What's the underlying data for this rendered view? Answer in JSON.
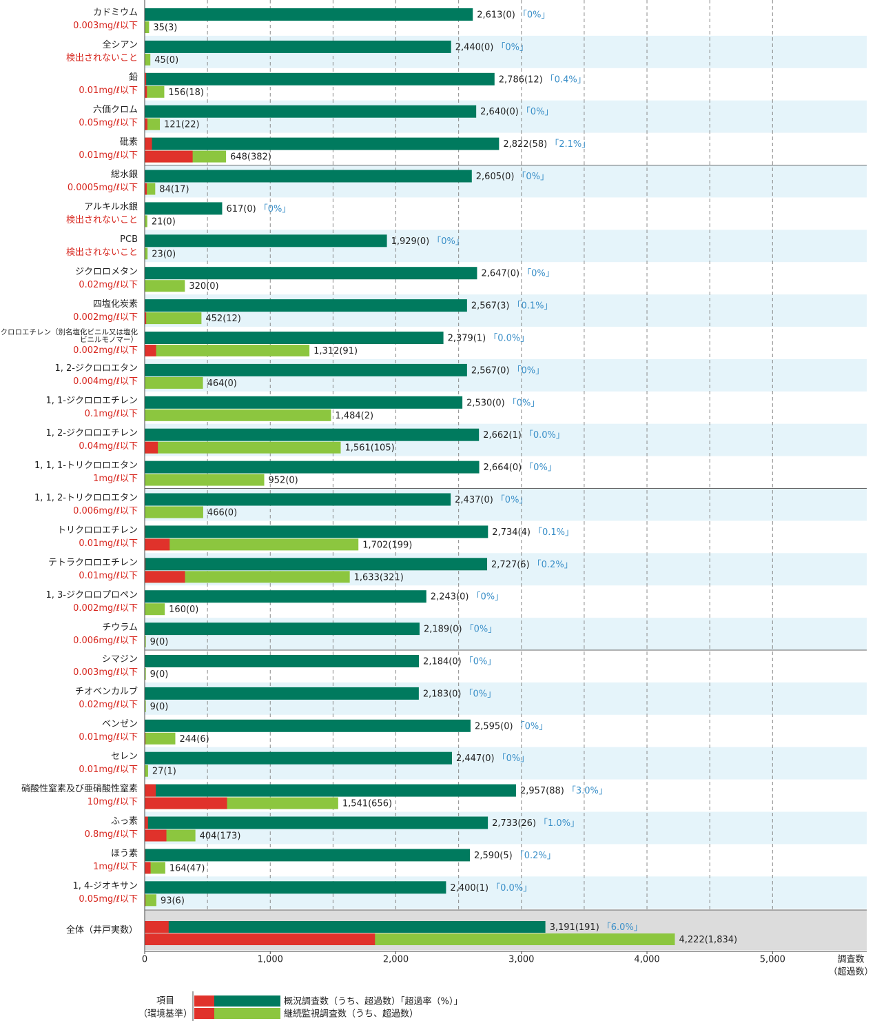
{
  "chart_data": {
    "type": "bar",
    "orientation": "horizontal",
    "categories": [
      "カドミウム",
      "全シアン",
      "鉛",
      "六価クロム",
      "砒素",
      "総水銀",
      "アルキル水銀",
      "PCB",
      "ジクロロメタン",
      "四塩化炭素",
      "クロロエチレン（別名塩化ビニル又は塩化ビニルモノマー）",
      "1, 2-ジクロロエタン",
      "1, 1-ジクロロエチレン",
      "1, 2-ジクロロエチレン",
      "1, 1, 1-トリクロロエタン",
      "1, 1, 2-トリクロロエタン",
      "トリクロロエチレン",
      "テトラクロロエチレン",
      "1, 3-ジクロロプロペン",
      "チウラム",
      "シマジン",
      "チオベンカルブ",
      "ベンゼン",
      "セレン",
      "硝酸性窒素及び亜硝酸性窒素",
      "ふっ素",
      "ほう素",
      "1, 4-ジオキサン",
      "全体（井戸実数）"
    ],
    "standards": [
      "0.003mg/ℓ以下",
      "検出されないこと",
      "0.01mg/ℓ以下",
      "0.05mg/ℓ以下",
      "0.01mg/ℓ以下",
      "0.0005mg/ℓ以下",
      "検出されないこと",
      "検出されないこと",
      "0.02mg/ℓ以下",
      "0.002mg/ℓ以下",
      "0.002mg/ℓ以下",
      "0.004mg/ℓ以下",
      "0.1mg/ℓ以下",
      "0.04mg/ℓ以下",
      "1mg/ℓ以下",
      "0.006mg/ℓ以下",
      "0.01mg/ℓ以下",
      "0.01mg/ℓ以下",
      "0.002mg/ℓ以下",
      "0.006mg/ℓ以下",
      "0.003mg/ℓ以下",
      "0.02mg/ℓ以下",
      "0.01mg/ℓ以下",
      "0.01mg/ℓ以下",
      "10mg/ℓ以下",
      "0.8mg/ℓ以下",
      "1mg/ℓ以下",
      "0.05mg/ℓ以下",
      null
    ],
    "series": [
      {
        "name": "概況調査数（うち、超過数）「超過率（%）」",
        "color": "#007a5e",
        "exceed_color": "#e0322b",
        "rate_color": "#3a8fc8",
        "values": [
          2613,
          2440,
          2786,
          2640,
          2822,
          2605,
          617,
          1929,
          2647,
          2567,
          2379,
          2567,
          2530,
          2662,
          2664,
          2437,
          2734,
          2727,
          2243,
          2189,
          2184,
          2183,
          2595,
          2447,
          2957,
          2733,
          2590,
          2400,
          3191
        ],
        "exceed": [
          0,
          0,
          12,
          0,
          58,
          0,
          0,
          0,
          0,
          3,
          1,
          0,
          0,
          1,
          0,
          0,
          4,
          6,
          0,
          0,
          0,
          0,
          0,
          0,
          88,
          26,
          5,
          1,
          191
        ],
        "value_labels": [
          "2,613(0)",
          "2,440(0)",
          "2,786(12)",
          "2,640(0)",
          "2,822(58)",
          "2,605(0)",
          "617(0)",
          "1,929(0)",
          "2,647(0)",
          "2,567(3)",
          "2,379(1)",
          "2,567(0)",
          "2,530(0)",
          "2,662(1)",
          "2,664(0)",
          "2,437(0)",
          "2,734(4)",
          "2,727(6)",
          "2,243(0)",
          "2,189(0)",
          "2,184(0)",
          "2,183(0)",
          "2,595(0)",
          "2,447(0)",
          "2,957(88)",
          "2,733(26)",
          "2,590(5)",
          "2,400(1)",
          "3,191(191)"
        ],
        "rates": [
          0,
          0,
          0.4,
          0,
          2.1,
          0,
          0,
          0,
          0,
          0.1,
          0.0,
          0,
          0,
          0.0,
          0,
          0,
          0.1,
          0.2,
          0,
          0,
          0,
          0,
          0,
          0,
          3.0,
          1.0,
          0.2,
          0.0,
          6.0
        ],
        "rate_labels": [
          "「0%」",
          "「0%」",
          "「0.4%」",
          "「0%」",
          "「2.1%」",
          "「0%」",
          "「0%」",
          "「0%」",
          "「0%」",
          "「0.1%」",
          "「0.0%」",
          "「0%」",
          "「0%」",
          "「0.0%」",
          "「0%」",
          "「0%」",
          "「0.1%」",
          "「0.2%」",
          "「0%」",
          "「0%」",
          "「0%」",
          "「0%」",
          "「0%」",
          "「0%」",
          "「3.0%」",
          "「1.0%」",
          "「0.2%」",
          "「0.0%」",
          "「6.0%」"
        ]
      },
      {
        "name": "継続監視調査数（うち、超過数）",
        "color": "#8cc63f",
        "exceed_color": "#e0322b",
        "values": [
          35,
          45,
          156,
          121,
          648,
          84,
          21,
          23,
          320,
          452,
          1312,
          464,
          1484,
          1561,
          952,
          466,
          1702,
          1633,
          160,
          9,
          9,
          9,
          244,
          27,
          1541,
          404,
          164,
          93,
          4222
        ],
        "exceed": [
          3,
          0,
          18,
          22,
          382,
          17,
          0,
          0,
          0,
          12,
          91,
          0,
          2,
          105,
          0,
          0,
          199,
          321,
          0,
          0,
          0,
          0,
          6,
          1,
          656,
          173,
          47,
          6,
          1834
        ],
        "value_labels": [
          "35(3)",
          "45(0)",
          "156(18)",
          "121(22)",
          "648(382)",
          "84(17)",
          "21(0)",
          "23(0)",
          "320(0)",
          "452(12)",
          "1,312(91)",
          "464(0)",
          "1,484(2)",
          "1,561(105)",
          "952(0)",
          "466(0)",
          "1,702(199)",
          "1,633(321)",
          "160(0)",
          "9(0)",
          "9(0)",
          "9(0)",
          "244(6)",
          "27(1)",
          "1,541(656)",
          "404(173)",
          "164(47)",
          "93(6)",
          "4,222(1,834)"
        ]
      }
    ],
    "xlim": [
      0,
      5750
    ],
    "xticks": [
      0,
      {
        "value": 1000,
        "label": "1,000"
      },
      {
        "value": 2000,
        "label": "2,000"
      },
      {
        "value": 3000,
        "label": "3,000"
      },
      {
        "value": 4000,
        "label": "4,000"
      },
      {
        "value": 5000,
        "label": "5,000"
      }
    ],
    "xgrid": [
      500,
      1000,
      1500,
      2000,
      2500,
      3000,
      3500,
      4000,
      4500,
      5000
    ],
    "xlabel": "調査数",
    "xlabel_sub": "（超過数）",
    "legend_title": "項目",
    "legend_subtitle": "（環境基準）"
  }
}
